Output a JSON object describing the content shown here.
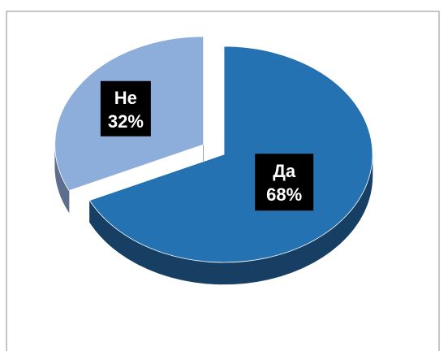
{
  "chart_data": {
    "type": "pie",
    "style": "3d-exploded",
    "title": "",
    "slices": [
      {
        "label": "Да",
        "value": 68,
        "value_label": "68%",
        "color": "#2472B2",
        "side_color": "#163F63",
        "exploded": false
      },
      {
        "label": "Не",
        "value": 32,
        "value_label": "32%",
        "color": "#8DAEDA",
        "side_color": "#5D6E8D",
        "exploded": true
      }
    ],
    "legend": "none",
    "label_style": {
      "background": "#000000",
      "text_color": "#FFFFFF"
    }
  }
}
